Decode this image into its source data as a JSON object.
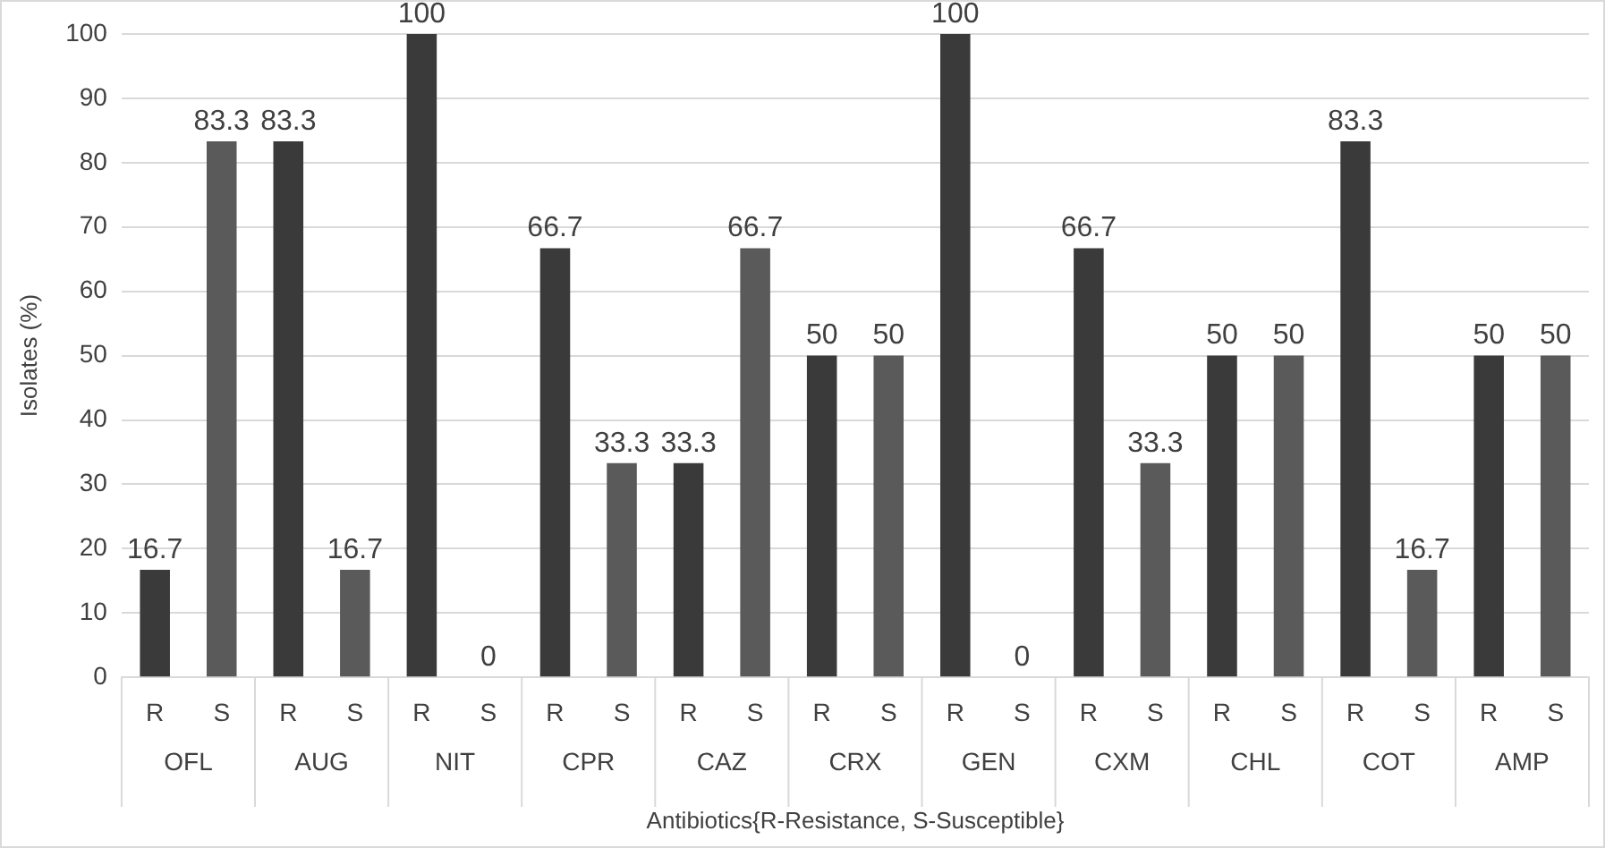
{
  "chart_data": {
    "type": "bar",
    "xlabel": "Antibiotics{R-Resistance, S-Susceptible}",
    "ylabel": "Isolates (%)",
    "categories": [
      "R",
      "S",
      "R",
      "S",
      "R",
      "S",
      "R",
      "S",
      "R",
      "S",
      "R",
      "S",
      "R",
      "S",
      "R",
      "S",
      "R",
      "S",
      "R",
      "S",
      "R",
      "S"
    ],
    "values": [
      16.7,
      83.3,
      83.3,
      16.7,
      100,
      0,
      66.7,
      33.3,
      33.3,
      66.7,
      50,
      50,
      100,
      0,
      66.7,
      33.3,
      50,
      50,
      83.3,
      16.7,
      50,
      50
    ],
    "colors": [
      "#3a3a3a",
      "#5a5a5a",
      "#3a3a3a",
      "#5a5a5a",
      "#3a3a3a",
      "#5a5a5a",
      "#3a3a3a",
      "#5a5a5a",
      "#3a3a3a",
      "#5a5a5a",
      "#3a3a3a",
      "#5a5a5a",
      "#3a3a3a",
      "#5a5a5a",
      "#3a3a3a",
      "#5a5a5a",
      "#3a3a3a",
      "#5a5a5a",
      "#3a3a3a",
      "#5a5a5a",
      "#3a3a3a",
      "#5a5a5a"
    ],
    "annotations": [
      "OFL",
      "AUG",
      "NIT",
      "CPR",
      "CAZ",
      "CRX",
      "GEN",
      "CXM",
      "CHL",
      "COT",
      "AMP"
    ],
    "ylim": [
      0,
      100
    ],
    "yticks": [
      0,
      10,
      20,
      30,
      40,
      50,
      60,
      70,
      80,
      90,
      100
    ],
    "grid": "y",
    "data_labels": true,
    "legend": false
  }
}
